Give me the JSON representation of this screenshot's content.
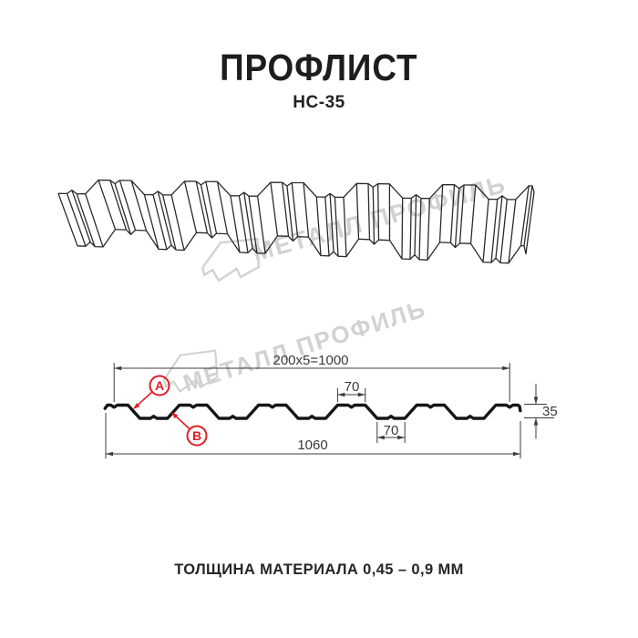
{
  "page": {
    "title": "ПРОФЛИСТ",
    "subtitle": "НС-35",
    "footer": "ТОЛЩИНА МАТЕРИАЛА 0,45 – 0,9 ММ"
  },
  "watermark": {
    "text": "МЕТАЛЛ ПРОФИЛЬ"
  },
  "dimensions": {
    "useful_width": "200x5=1000",
    "crest_width": "70",
    "trough_width": "70",
    "overall_width": "1060",
    "profile_height": "35"
  },
  "markers": {
    "a": "A",
    "b": "B"
  },
  "colors": {
    "accent_red": "#e31e24",
    "dim_line": "#3c3c3c",
    "profile_line": "#161616",
    "sheet_line": "#2b2b2b",
    "watermark_gray": "#d2d2d2"
  }
}
